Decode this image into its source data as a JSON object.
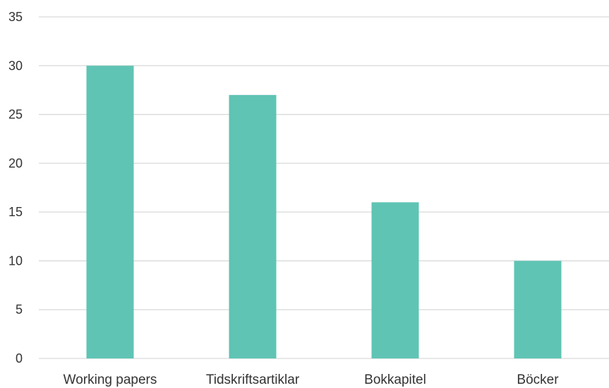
{
  "chart_data": {
    "type": "bar",
    "title": "",
    "xlabel": "",
    "ylabel": "",
    "categories": [
      "Working papers",
      "Tidskriftsartiklar",
      "Bokkapitel",
      "Böcker"
    ],
    "values": [
      30,
      27,
      16,
      10
    ],
    "ylim": [
      0,
      35
    ],
    "yticks": [
      "0",
      "5",
      "10",
      "15",
      "20",
      "25",
      "30",
      "35"
    ],
    "grid": true,
    "legend": "none",
    "bar_color": "#5fc4b4"
  }
}
